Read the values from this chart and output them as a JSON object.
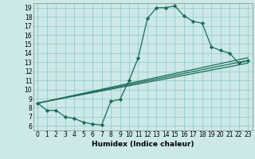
{
  "title": "",
  "xlabel": "Humidex (Indice chaleur)",
  "bg_color": "#cce8e8",
  "grid_color": "#99cccc",
  "line_color": "#1a6b5a",
  "xlim": [
    -0.5,
    23.5
  ],
  "ylim": [
    5.5,
    19.5
  ],
  "xticks": [
    0,
    1,
    2,
    3,
    4,
    5,
    6,
    7,
    8,
    9,
    10,
    11,
    12,
    13,
    14,
    15,
    16,
    17,
    18,
    19,
    20,
    21,
    22,
    23
  ],
  "yticks": [
    6,
    7,
    8,
    9,
    10,
    11,
    12,
    13,
    14,
    15,
    16,
    17,
    18,
    19
  ],
  "curve1_x": [
    0,
    1,
    2,
    3,
    4,
    5,
    6,
    7,
    8,
    9,
    10,
    11,
    12,
    13,
    14,
    15,
    16,
    17,
    18,
    19,
    20,
    21,
    22,
    23
  ],
  "curve1_y": [
    8.5,
    7.7,
    7.7,
    7.0,
    6.8,
    6.4,
    6.2,
    6.1,
    8.7,
    8.9,
    11.0,
    13.5,
    17.8,
    19.0,
    19.0,
    19.2,
    18.1,
    17.5,
    17.3,
    14.7,
    14.3,
    14.0,
    12.9,
    13.2
  ],
  "line1_x": [
    0,
    23
  ],
  "line1_y": [
    8.5,
    13.2
  ],
  "line2_x": [
    0,
    23
  ],
  "line2_y": [
    8.5,
    12.9
  ],
  "line3_x": [
    0,
    23
  ],
  "line3_y": [
    8.5,
    13.5
  ],
  "marker": "D",
  "markersize": 2.2,
  "linewidth": 0.9,
  "tick_fontsize": 5.5,
  "xlabel_fontsize": 6.5
}
